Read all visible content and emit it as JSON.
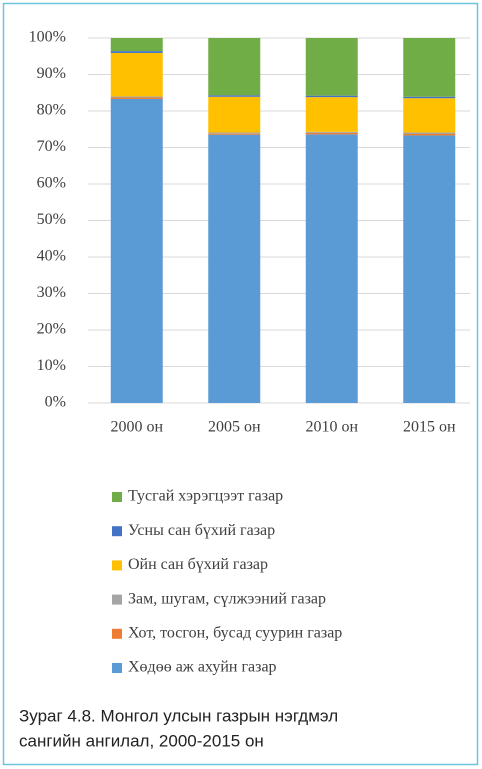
{
  "chart_data": {
    "type": "stacked_bar",
    "categories": [
      "2000 он",
      "2005 он",
      "2010 он",
      "2015 он"
    ],
    "series": [
      {
        "name": "Хөдөө аж ахуйн газар",
        "color": "#5b9bd5",
        "values": [
          83.3,
          73.5,
          73.6,
          73.3
        ]
      },
      {
        "name": "Хот, тосгон, бусад суурин газар",
        "color": "#ed7d31",
        "values": [
          0.4,
          0.3,
          0.4,
          0.4
        ]
      },
      {
        "name": "Зам, шугам, сүлжээний газар",
        "color": "#a5a5a5",
        "values": [
          0.3,
          0.3,
          0.3,
          0.4
        ]
      },
      {
        "name": "Ойн сан бүхий газар",
        "color": "#ffc000",
        "values": [
          11.9,
          9.8,
          9.5,
          9.4
        ]
      },
      {
        "name": "Усны сан бүхий газар",
        "color": "#4472c4",
        "values": [
          0.5,
          0.4,
          0.4,
          0.4
        ]
      },
      {
        "name": "Тусгай хэрэгцээт газар",
        "color": "#70ad47",
        "values": [
          3.6,
          15.7,
          15.8,
          16.1
        ]
      }
    ],
    "ylim": [
      0,
      100
    ],
    "yticks": [
      {
        "value": 0,
        "label": "0%"
      },
      {
        "value": 10,
        "label": "10%"
      },
      {
        "value": 20,
        "label": "20%"
      },
      {
        "value": 30,
        "label": "30%"
      },
      {
        "value": 40,
        "label": "40%"
      },
      {
        "value": 50,
        "label": "50%"
      },
      {
        "value": 60,
        "label": "60%"
      },
      {
        "value": 70,
        "label": "70%"
      },
      {
        "value": 80,
        "label": "80%"
      },
      {
        "value": 90,
        "label": "90%"
      },
      {
        "value": 100,
        "label": "100%"
      }
    ],
    "grid": true,
    "caption": [
      "Зураг 4.8. Монгол улсын газрын нэгдмэл",
      "сангийн ангилал, 2000-2015 он"
    ]
  }
}
